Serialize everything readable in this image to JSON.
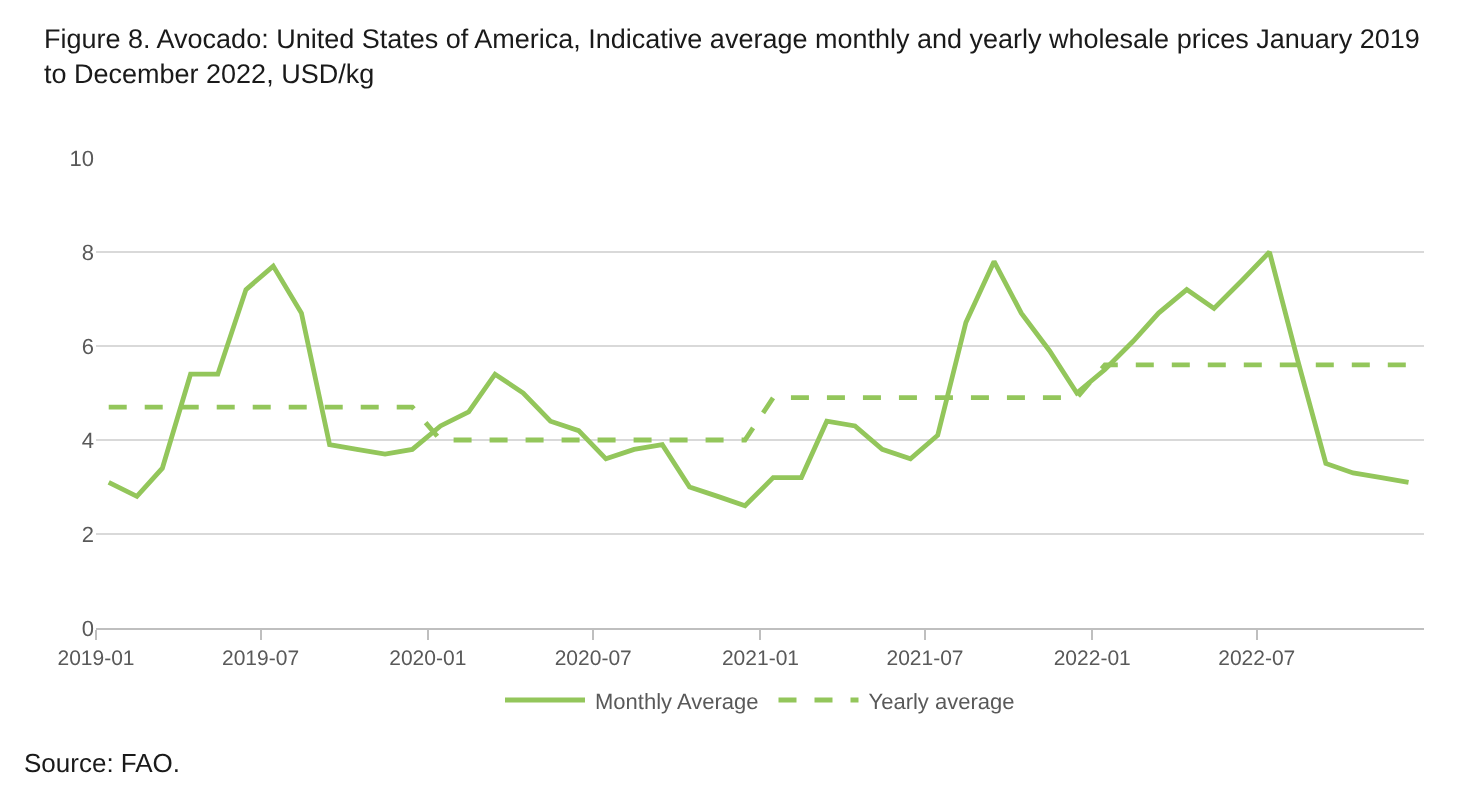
{
  "chart_data": {
    "type": "line",
    "title": "Figure 8. Avocado: United States of America, Indicative average monthly and yearly wholesale prices January 2019 to December 2022, USD/kg",
    "x": [
      "2019-01-15",
      "2019-02-15",
      "2019-03-15",
      "2019-04-15",
      "2019-05-15",
      "2019-06-15",
      "2019-07-15",
      "2019-08-15",
      "2019-09-15",
      "2019-10-15",
      "2019-11-15",
      "2019-12-15",
      "2020-01-15",
      "2020-02-15",
      "2020-03-15",
      "2020-04-15",
      "2020-05-15",
      "2020-06-15",
      "2020-07-15",
      "2020-08-15",
      "2020-09-15",
      "2020-10-15",
      "2020-11-15",
      "2020-12-15",
      "2021-01-15",
      "2021-02-15",
      "2021-03-15",
      "2021-04-15",
      "2021-05-15",
      "2021-06-15",
      "2021-07-15",
      "2021-08-15",
      "2021-09-15",
      "2021-10-15",
      "2021-11-15",
      "2021-12-15",
      "2022-01-15",
      "2022-02-15",
      "2022-03-15",
      "2022-04-15",
      "2022-05-15",
      "2022-06-15",
      "2022-07-15",
      "2022-08-15",
      "2022-09-15",
      "2022-10-15",
      "2022-11-15",
      "2022-12-15"
    ],
    "series": [
      {
        "name": "Monthly Average",
        "color": "#93c65b",
        "values": [
          3.1,
          2.8,
          3.4,
          5.4,
          5.4,
          7.2,
          7.7,
          6.7,
          3.9,
          3.8,
          3.7,
          3.8,
          4.3,
          4.6,
          5.4,
          5.0,
          4.4,
          4.2,
          3.6,
          3.8,
          3.9,
          3.0,
          2.8,
          2.6,
          3.2,
          3.2,
          4.4,
          4.3,
          3.8,
          3.6,
          4.1,
          6.5,
          7.8,
          6.7,
          5.9,
          5.0,
          5.5,
          6.1,
          6.7,
          7.2,
          6.8,
          7.4,
          8.0,
          5.7,
          3.5,
          3.3,
          3.2,
          3.1
        ]
      },
      {
        "name": "Yearly average",
        "color": "#93c65b",
        "line_style": "dashed",
        "values": [
          4.7,
          4.7,
          4.7,
          4.7,
          4.7,
          4.7,
          4.7,
          4.7,
          4.7,
          4.7,
          4.7,
          4.7,
          4.0,
          4.0,
          4.0,
          4.0,
          4.0,
          4.0,
          4.0,
          4.0,
          4.0,
          4.0,
          4.0,
          4.0,
          4.9,
          4.9,
          4.9,
          4.9,
          4.9,
          4.9,
          4.9,
          4.9,
          4.9,
          4.9,
          4.9,
          4.9,
          5.6,
          5.6,
          5.6,
          5.6,
          5.6,
          5.6,
          5.6,
          5.6,
          5.6,
          5.6,
          5.6,
          5.6
        ]
      }
    ],
    "xlim": [
      "2019-01-01",
      "2023-01-01"
    ],
    "xticks": [
      "2019-01",
      "2019-07",
      "2020-01",
      "2020-07",
      "2021-01",
      "2021-07",
      "2022-01",
      "2022-07"
    ],
    "ylim": [
      0,
      10
    ],
    "yticks": [
      0,
      2,
      4,
      6,
      8,
      10
    ],
    "grid": "y",
    "legend": "bottom",
    "annotations": [
      "Source: FAO."
    ]
  }
}
